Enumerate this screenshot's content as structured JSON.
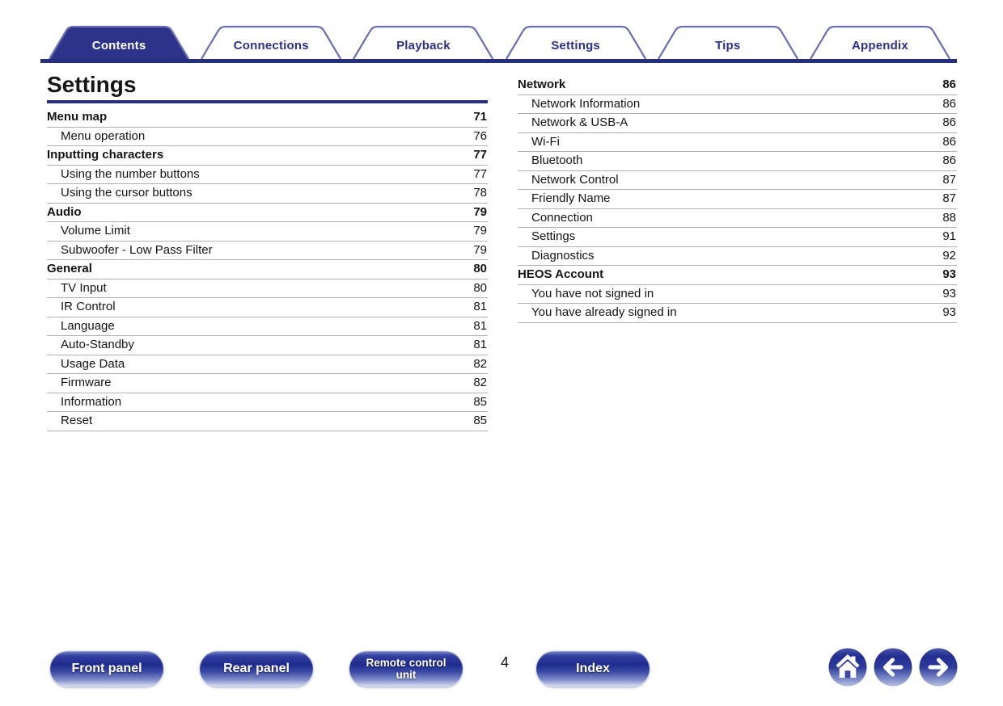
{
  "colors": {
    "navy": "#272e7d",
    "tab_fill": "#2d3388",
    "tab_border": "#6b6fb3",
    "tab_text": "#2b3189",
    "separator": "#b0b0b0",
    "text": "#141414",
    "button_gradient_dark": "#1f2b8e",
    "button_gradient_light": "#cfd6ee"
  },
  "tabs": [
    {
      "label": "Contents",
      "active": true
    },
    {
      "label": "Connections",
      "active": false
    },
    {
      "label": "Playback",
      "active": false
    },
    {
      "label": "Settings",
      "active": false
    },
    {
      "label": "Tips",
      "active": false
    },
    {
      "label": "Appendix",
      "active": false
    }
  ],
  "heading": "Settings",
  "toc_left": [
    {
      "label": "Menu map",
      "page": "71",
      "level": 0
    },
    {
      "label": "Menu operation",
      "page": "76",
      "level": 1
    },
    {
      "label": "Inputting characters",
      "page": "77",
      "level": 0
    },
    {
      "label": "Using the number buttons",
      "page": "77",
      "level": 1
    },
    {
      "label": "Using the cursor buttons",
      "page": "78",
      "level": 1
    },
    {
      "label": "Audio",
      "page": "79",
      "level": 0
    },
    {
      "label": "Volume Limit",
      "page": "79",
      "level": 1
    },
    {
      "label": "Subwoofer - Low Pass Filter",
      "page": "79",
      "level": 1
    },
    {
      "label": "General",
      "page": "80",
      "level": 0
    },
    {
      "label": "TV Input",
      "page": "80",
      "level": 1
    },
    {
      "label": "IR Control",
      "page": "81",
      "level": 1
    },
    {
      "label": "Language",
      "page": "81",
      "level": 1
    },
    {
      "label": "Auto-Standby",
      "page": "81",
      "level": 1
    },
    {
      "label": "Usage Data",
      "page": "82",
      "level": 1
    },
    {
      "label": "Firmware",
      "page": "82",
      "level": 1
    },
    {
      "label": "Information",
      "page": "85",
      "level": 1
    },
    {
      "label": "Reset",
      "page": "85",
      "level": 1
    }
  ],
  "toc_right": [
    {
      "label": "Network",
      "page": "86",
      "level": 0
    },
    {
      "label": "Network Information",
      "page": "86",
      "level": 1
    },
    {
      "label": "Network & USB-A",
      "page": "86",
      "level": 1
    },
    {
      "label": "Wi-Fi",
      "page": "86",
      "level": 1
    },
    {
      "label": "Bluetooth",
      "page": "86",
      "level": 1
    },
    {
      "label": "Network Control",
      "page": "87",
      "level": 1
    },
    {
      "label": "Friendly Name",
      "page": "87",
      "level": 1
    },
    {
      "label": "Connection",
      "page": "88",
      "level": 1
    },
    {
      "label": "Settings",
      "page": "91",
      "level": 1
    },
    {
      "label": "Diagnostics",
      "page": "92",
      "level": 1
    },
    {
      "label": "HEOS Account",
      "page": "93",
      "level": 0
    },
    {
      "label": "You have not signed in",
      "page": "93",
      "level": 1
    },
    {
      "label": "You have already signed in",
      "page": "93",
      "level": 1
    }
  ],
  "footer": {
    "front_panel": "Front panel",
    "rear_panel": "Rear panel",
    "remote_line1": "Remote control",
    "remote_line2": "unit",
    "index": "Index",
    "page_number": "4",
    "nav_icons": [
      "home-icon",
      "back-arrow-icon",
      "forward-arrow-icon"
    ]
  }
}
